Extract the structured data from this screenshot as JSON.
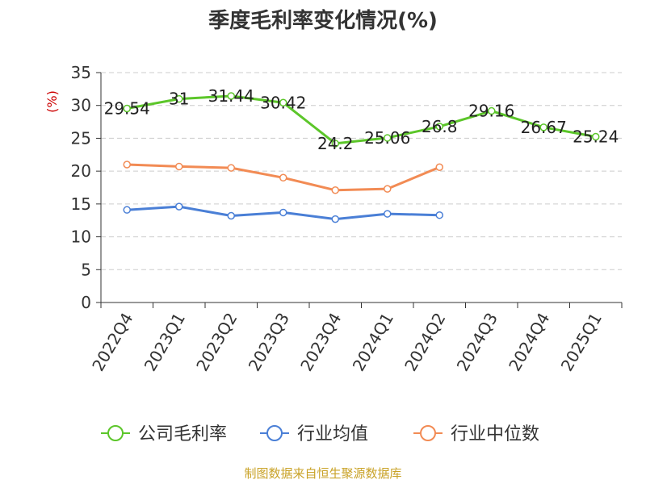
{
  "title": "季度毛利率变化情况(%)",
  "unit_label": "(%)",
  "source": "制图数据来自恒生聚源数据库",
  "chart_data": {
    "type": "line",
    "categories": [
      "2022Q4",
      "2023Q1",
      "2023Q2",
      "2023Q3",
      "2023Q4",
      "2024Q1",
      "2024Q2",
      "2024Q3",
      "2024Q4",
      "2025Q1"
    ],
    "ylim": [
      0,
      35
    ],
    "yticks": [
      0,
      5,
      10,
      15,
      20,
      25,
      30,
      35
    ],
    "grid": true,
    "legend_position": "bottom",
    "series": [
      {
        "name": "公司毛利率",
        "color": "#5cc62a",
        "values": [
          29.54,
          31,
          31.44,
          30.42,
          24.2,
          25.06,
          26.8,
          29.16,
          26.67,
          25.24
        ],
        "labels": [
          "29.54",
          "31",
          "31.44",
          "30.42",
          "24.2",
          "25.06",
          "26.8",
          "29.16",
          "26.67",
          "25.24"
        ]
      },
      {
        "name": "行业均值",
        "color": "#4a7fd6",
        "values": [
          14.1,
          14.6,
          13.2,
          13.7,
          12.7,
          13.5,
          13.3,
          null,
          null,
          null
        ]
      },
      {
        "name": "行业中位数",
        "color": "#f28b54",
        "values": [
          21.0,
          20.7,
          20.5,
          19.0,
          17.1,
          17.3,
          20.6,
          null,
          null,
          null
        ]
      }
    ]
  }
}
